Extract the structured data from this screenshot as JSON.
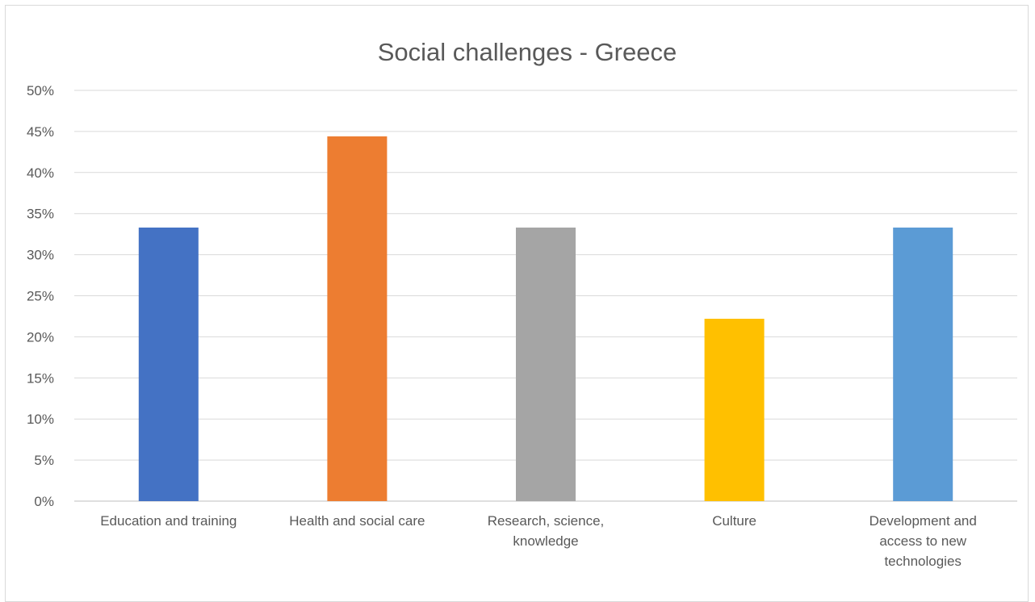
{
  "chart_data": {
    "type": "bar",
    "title": "Social challenges - Greece",
    "xlabel": "",
    "ylabel": "",
    "ylim": [
      0,
      50
    ],
    "yticks": [
      "0%",
      "5%",
      "10%",
      "15%",
      "20%",
      "25%",
      "30%",
      "35%",
      "40%",
      "45%",
      "50%"
    ],
    "categories": [
      [
        "Education and training"
      ],
      [
        "Health and social care"
      ],
      [
        "Research, science,",
        "knowledge"
      ],
      [
        "Culture"
      ],
      [
        "Development and",
        "access to new",
        "technologies"
      ]
    ],
    "values": [
      33.3,
      44.4,
      33.3,
      22.2,
      33.3
    ],
    "colors": [
      "#4472c4",
      "#ed7d31",
      "#a5a5a5",
      "#ffc000",
      "#5b9bd5"
    ],
    "grid": true,
    "legend": "none"
  }
}
